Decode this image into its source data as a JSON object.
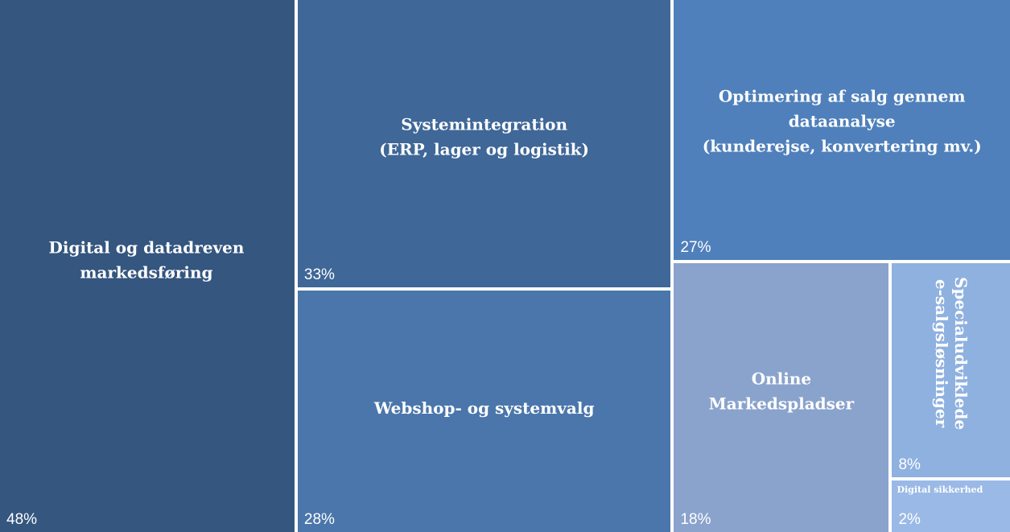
{
  "chart_data": {
    "type": "treemap",
    "categories": [
      "Digital og datadreven\nmarkedsføring",
      "Systemintegration\n(ERP, lager og logistik)",
      "Webshop- og systemvalg",
      "Optimering af salg gennem\ndataanalyse\n(kunderejse, konvertering mv.)",
      "Online\nMarkedspladser",
      "Specialudviklede\ne-salgsløsninger",
      "Digital sikkerhed"
    ],
    "values": [
      48,
      33,
      28,
      27,
      18,
      8,
      2
    ],
    "value_labels": [
      "48%",
      "33%",
      "28%",
      "27%",
      "18%",
      "8%",
      "2%"
    ],
    "colors": [
      "#34567f",
      "#3f6797",
      "#4a76ab",
      "#4f80bb",
      "#8aa3cc",
      "#8fb1e0",
      "#9ab9e6"
    ]
  }
}
